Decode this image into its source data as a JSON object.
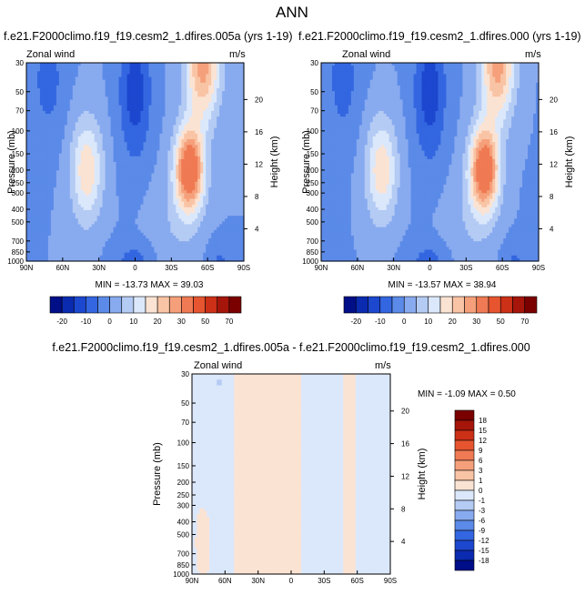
{
  "chart_data": [
    {
      "type": "contour",
      "title": "f.e21.F2000climo.f19_f19.cesm2_1.dfires.005a (yrs 1-19)",
      "field_label": "Zonal wind",
      "units": "m/s",
      "ylabel": "Pressure (mb)",
      "ylabel_right": "Height (km)",
      "x_ticks": [
        "90N",
        "60N",
        "30N",
        "0",
        "30S",
        "60S",
        "90S"
      ],
      "x_range": [
        90,
        -90
      ],
      "y_ticks": [
        30,
        50,
        70,
        100,
        150,
        200,
        250,
        300,
        400,
        500,
        700,
        850,
        1000
      ],
      "y_range": [
        30,
        1000
      ],
      "height_ticks": [
        20,
        16,
        12,
        8,
        4
      ],
      "min": -13.73,
      "max": 39.03,
      "stats_text": "MIN = -13.73   MAX = 39.03"
    },
    {
      "type": "contour",
      "title": "f.e21.F2000climo.f19_f19.cesm2_1.dfires.000 (yrs 1-19)",
      "field_label": "Zonal wind",
      "units": "m/s",
      "ylabel": "Pressure (mb)",
      "ylabel_right": "Height (km)",
      "x_ticks": [
        "90N",
        "60N",
        "30N",
        "0",
        "30S",
        "60S",
        "90S"
      ],
      "x_range": [
        90,
        -90
      ],
      "y_ticks": [
        30,
        50,
        70,
        100,
        150,
        200,
        250,
        300,
        400,
        500,
        700,
        850,
        1000
      ],
      "y_range": [
        30,
        1000
      ],
      "height_ticks": [
        20,
        16,
        12,
        8,
        4
      ],
      "min": -13.57,
      "max": 38.94,
      "stats_text": "MIN = -13.57   MAX = 38.94"
    },
    {
      "type": "contour",
      "title": "f.e21.F2000climo.f19_f19.cesm2_1.dfires.005a - f.e21.F2000climo.f19_f19.cesm2_1.dfires.000",
      "field_label": "Zonal wind",
      "units": "m/s",
      "ylabel": "Pressure (mb)",
      "ylabel_right": "Height (km)",
      "x_ticks": [
        "90N",
        "60N",
        "30N",
        "0",
        "30S",
        "60S",
        "90S"
      ],
      "x_range": [
        90,
        -90
      ],
      "y_ticks": [
        30,
        50,
        70,
        100,
        150,
        200,
        250,
        300,
        400,
        500,
        700,
        850,
        1000
      ],
      "y_range": [
        30,
        1000
      ],
      "height_ticks": [
        20,
        16,
        12,
        8,
        4
      ],
      "min": -1.09,
      "max": 0.5,
      "stats_text": "MIN = -1.09   MAX =  0.50"
    }
  ],
  "figure_title": "ANN",
  "colorbar_main": {
    "labels": [
      "-20",
      "-10",
      "0",
      "10",
      "20",
      "30",
      "50",
      "70"
    ],
    "colors": [
      "#000e88",
      "#0a2ab0",
      "#1c47cf",
      "#3366e0",
      "#5b8ae8",
      "#88aaef",
      "#b4cbf4",
      "#dbe8fb",
      "#fbe3d3",
      "#f9c4a5",
      "#f5a07b",
      "#ef7a53",
      "#e6552f",
      "#cc3017",
      "#a5150a",
      "#7a0000"
    ]
  },
  "colorbar_diff": {
    "labels": [
      "18",
      "15",
      "12",
      "9",
      "6",
      "3",
      "1",
      "0",
      "-1",
      "-3",
      "-6",
      "-9",
      "-12",
      "-15",
      "-18"
    ],
    "colors": [
      "#7a0000",
      "#a5150a",
      "#cc3017",
      "#e6552f",
      "#ef7a53",
      "#f5a07b",
      "#f9c4a5",
      "#fbe3d3",
      "#dbe8fb",
      "#b4cbf4",
      "#88aaef",
      "#5b8ae8",
      "#3366e0",
      "#1c47cf",
      "#0a2ab0",
      "#000e88"
    ]
  }
}
